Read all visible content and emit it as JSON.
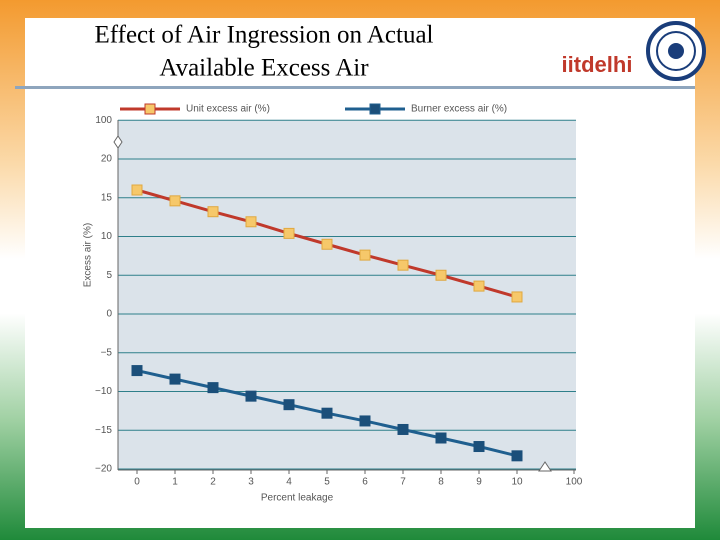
{
  "header": {
    "title_line1": "Effect of Air Ingression on Actual",
    "title_line2": "Available Excess Air",
    "logo_text": "iitdelhi"
  },
  "chart_data": {
    "type": "line",
    "x": [
      0,
      1,
      2,
      3,
      4,
      5,
      6,
      7,
      8,
      9,
      10
    ],
    "series": [
      {
        "name": "Unit excess air (%)",
        "color": "#c0392b",
        "marker_color": "#f6c86a",
        "values": [
          16.0,
          14.6,
          13.2,
          11.9,
          10.4,
          9.0,
          7.6,
          6.3,
          5.0,
          3.6,
          2.2
        ]
      },
      {
        "name": "Burner excess air (%)",
        "color": "#1f5f8f",
        "marker_color": "#1b4f7a",
        "values": [
          -7.3,
          -8.4,
          -9.5,
          -10.6,
          -11.7,
          -12.8,
          -13.8,
          -14.9,
          -16.0,
          -17.1,
          -18.3
        ]
      }
    ],
    "xlabel": "Percent leakage",
    "ylabel": "Excess air (%)",
    "xlim": [
      0,
      100
    ],
    "ylim": [
      -20,
      100
    ],
    "xticks": [
      0,
      1,
      2,
      3,
      4,
      5,
      6,
      7,
      8,
      9,
      10,
      100
    ],
    "yticks": [
      {
        "value": -20,
        "label": "−20"
      },
      {
        "value": -15,
        "label": "−15"
      },
      {
        "value": -10,
        "label": "−10"
      },
      {
        "value": -5,
        "label": "−5"
      },
      0,
      5,
      10,
      15,
      20,
      100
    ],
    "x_axis_break": true,
    "y_axis_break": true,
    "grid": true,
    "legend": "top"
  }
}
